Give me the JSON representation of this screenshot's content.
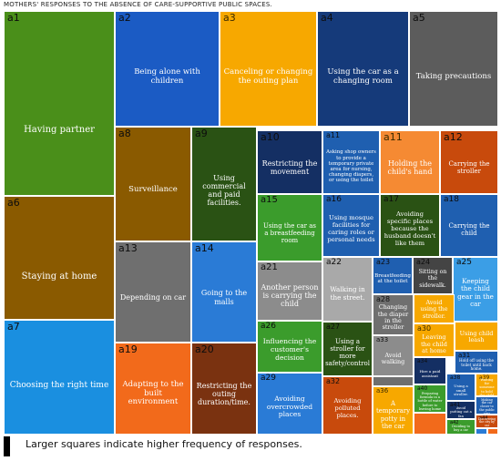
{
  "title": "MOTHERS' RESPONSES TO THE ABSENCE OF CARE-SUPPORTIVE PUBLIC SPACES.",
  "legend_note": "Larger squares indicate higher frequency of responses.",
  "tiles": [
    {
      "code": "a1",
      "label": "Having partner",
      "color": "#4a8f1a"
    },
    {
      "code": "a2",
      "label": "Being alone with children",
      "color": "#1b5bc4"
    },
    {
      "code": "a3",
      "label": "Canceling or changing the outing plan",
      "color": "#f7a800"
    },
    {
      "code": "a4",
      "label": "Using the car as a changing room",
      "color": "#153a7a"
    },
    {
      "code": "a5",
      "label": "Taking precautions",
      "color": "#5c5c5c"
    },
    {
      "code": "a6",
      "label": "Staying at home",
      "color": "#8a5a00"
    },
    {
      "code": "a7",
      "label": "Choosing the right time",
      "color": "#1a8fe0"
    },
    {
      "code": "a8",
      "label": "Surveillance",
      "color": "#8a5a00"
    },
    {
      "code": "a9",
      "label": "Using commercial and paid facilities.",
      "color": "#2a5214"
    },
    {
      "code": "a10",
      "label": "Restricting the movement",
      "color": "#142f63"
    },
    {
      "code": "a11",
      "label": "Asking shop owners to provide a temporary private area for nursing, changing diapers, or using the toilet",
      "color": "#1f5fb0"
    },
    {
      "code": "a11",
      "label": "Holding the child's hand",
      "color": "#f58a33"
    },
    {
      "code": "a12",
      "label": "Carrying the stroller",
      "color": "#c84a0c"
    },
    {
      "code": "a13",
      "label": "Depending on car",
      "color": "#6f6f6f"
    },
    {
      "code": "a14",
      "label": "Going to the malls",
      "color": "#2a7bd6"
    },
    {
      "code": "a15",
      "label": "Using the car as a breastfeeding room",
      "color": "#3b9c2c"
    },
    {
      "code": "a16",
      "label": "Using mosque facilities for caring roles or personal needs",
      "color": "#1f5fb0"
    },
    {
      "code": "a17",
      "label": "Avoiding specific places because the husband doesn't like them",
      "color": "#2a5214"
    },
    {
      "code": "a18",
      "label": "Carrying the child",
      "color": "#1f5fb0"
    },
    {
      "code": "a19",
      "label": "Adapting to the built environment",
      "color": "#f26a1b"
    },
    {
      "code": "a20",
      "label": "Restricting the outing duration/time.",
      "color": "#7a3210"
    },
    {
      "code": "a21",
      "label": "Another person is carrying the child",
      "color": "#8c8c8c"
    },
    {
      "code": "a22",
      "label": "Walking in the street.",
      "color": "#a9a9a9"
    },
    {
      "code": "a23",
      "label": "Breastfeeding at the toilet",
      "color": "#1f5fb0"
    },
    {
      "code": "a24",
      "label": "Sitting on the sidewalk.",
      "color": "#444444"
    },
    {
      "code": "a25",
      "label": "Keeping the child gear in the car",
      "color": "#3b9ee6"
    },
    {
      "code": "a26",
      "label": "Influencing the customer's decision",
      "color": "#3b9c2c"
    },
    {
      "code": "a27",
      "label": "Using a stroller for more safety/control",
      "color": "#2a5214"
    },
    {
      "code": "a28",
      "label": "Changing the diaper in the stroller",
      "color": "#6f6f6f"
    },
    {
      "code": "",
      "label": "Avoid using the stroller.",
      "color": "#f7a800"
    },
    {
      "code": "",
      "label": "Using child leash",
      "color": "#f7a800"
    },
    {
      "code": "a29",
      "label": "Avoiding overcrowded places",
      "color": "#2a7bd6"
    },
    {
      "code": "a30",
      "label": "Leaving the child at home",
      "color": "#f7a800"
    },
    {
      "code": "a31",
      "label": "Hold off using the toilet until back home.",
      "color": "#1f5fb0"
    },
    {
      "code": "a32",
      "label": "Avoiding polluted places.",
      "color": "#c84a0c"
    },
    {
      "code": "a33",
      "label": "Avoid walking",
      "color": "#8c8c8c"
    },
    {
      "code": "a34",
      "label": "Hire a paid assistant",
      "color": "#142f63"
    },
    {
      "code": "a38",
      "label": "Using a small stroller.",
      "color": "#1f5fb0"
    },
    {
      "code": "a39",
      "label": "Waiting for someone to hold the child",
      "color": "#f7a800"
    },
    {
      "code": "a36",
      "label": "A temporary potty in the car",
      "color": "#f7a800"
    },
    {
      "code": "a40",
      "label": "Preparing formula in a bottle of water before to leaving home",
      "color": "#3b9c2c"
    },
    {
      "code": "a41",
      "label": "Avoid putting out a fan",
      "color": "#142f63"
    },
    {
      "code": "",
      "label": "Making the car closer to the public area",
      "color": "#1f5fb0"
    },
    {
      "code": "a42",
      "label": "Deciding to buy a car",
      "color": "#3b9c2c"
    },
    {
      "code": "a44",
      "label": "Discovering the city by car",
      "color": "#c84a0c"
    },
    {
      "code": "",
      "label": "",
      "color": "#f26a1b"
    },
    {
      "code": "",
      "label": "",
      "color": "#6f6f6f"
    },
    {
      "code": "",
      "label": "",
      "color": "#2a7bd6"
    },
    {
      "code": "",
      "label": "",
      "color": "#f26a1b"
    }
  ]
}
